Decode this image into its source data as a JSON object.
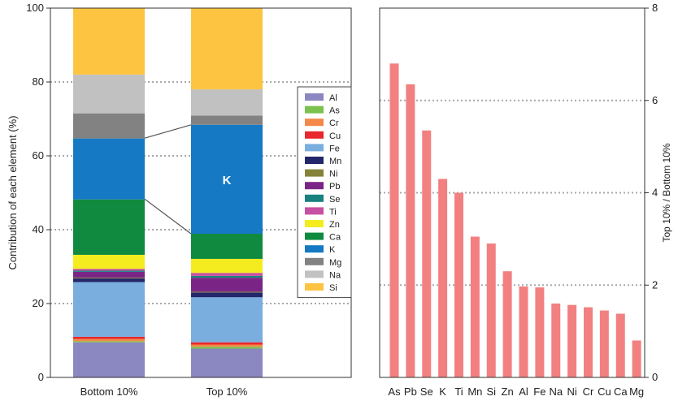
{
  "chart_data": [
    {
      "type": "bar",
      "stacked": true,
      "ylabel": "Contribution of each element (%)",
      "ylim": [
        0,
        100
      ],
      "yticks": [
        0,
        20,
        40,
        60,
        80,
        100
      ],
      "grid": "horizontal dotted",
      "legend_placement": "right",
      "categories": [
        "Bottom 10%",
        "Top 10%"
      ],
      "annotation": "K",
      "series": [
        {
          "name": "Al",
          "color": "#8b87c0",
          "values": [
            9.5,
            7.8
          ]
        },
        {
          "name": "As",
          "color": "#7cc24e",
          "values": [
            0.3,
            0.5
          ]
        },
        {
          "name": "Cr",
          "color": "#f4884a",
          "values": [
            0.6,
            0.6
          ]
        },
        {
          "name": "Cu",
          "color": "#e8282c",
          "values": [
            0.6,
            0.6
          ]
        },
        {
          "name": "Fe",
          "color": "#79aedf",
          "values": [
            14.8,
            12.2
          ]
        },
        {
          "name": "Mn",
          "color": "#23266b",
          "values": [
            1.0,
            1.3
          ]
        },
        {
          "name": "Ni",
          "color": "#858338",
          "values": [
            0.2,
            0.2
          ]
        },
        {
          "name": "Pb",
          "color": "#7a2586",
          "values": [
            1.6,
            3.8
          ]
        },
        {
          "name": "Se",
          "color": "#17827f",
          "values": [
            0.3,
            0.5
          ]
        },
        {
          "name": "Ti",
          "color": "#c750a2",
          "values": [
            0.5,
            0.8
          ]
        },
        {
          "name": "Zn",
          "color": "#f5ec1f",
          "values": [
            3.8,
            3.8
          ]
        },
        {
          "name": "Ca",
          "color": "#0f8a3e",
          "values": [
            15.0,
            6.8
          ]
        },
        {
          "name": "K",
          "color": "#1579c4",
          "values": [
            16.5,
            29.5
          ]
        },
        {
          "name": "Mg",
          "color": "#828282",
          "values": [
            6.8,
            2.5
          ]
        },
        {
          "name": "Na",
          "color": "#c1c1c1",
          "values": [
            10.5,
            7.1
          ]
        },
        {
          "name": "Si",
          "color": "#fcc441",
          "values": [
            18.0,
            22.0
          ]
        }
      ],
      "connectors": [
        {
          "from_cumulative": [
            64.8,
            68.4
          ]
        },
        {
          "from_cumulative": [
            48.3,
            38.9
          ]
        }
      ]
    },
    {
      "type": "bar",
      "ylabel": "Top 10% / Bottom 10%",
      "ylim": [
        0,
        8
      ],
      "yticks": [
        0,
        2,
        4,
        6,
        8
      ],
      "grid": "horizontal dotted",
      "y_axis_side": "right",
      "bar_color": "#f28080",
      "categories": [
        "As",
        "Pb",
        "Se",
        "K",
        "Ti",
        "Mn",
        "Si",
        "Zn",
        "Al",
        "Fe",
        "Na",
        "Ni",
        "Cr",
        "Cu",
        "Ca",
        "Mg"
      ],
      "values": [
        6.8,
        6.35,
        5.35,
        4.3,
        4.0,
        3.05,
        2.9,
        2.3,
        1.97,
        1.95,
        1.6,
        1.57,
        1.52,
        1.45,
        1.38,
        0.8
      ]
    }
  ]
}
